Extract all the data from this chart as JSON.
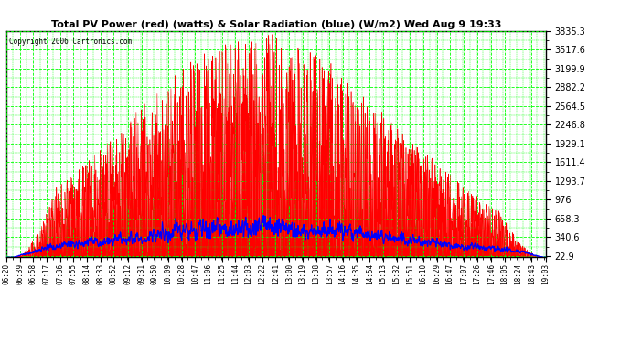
{
  "title": "Total PV Power (red) (watts) & Solar Radiation (blue) (W/m2) Wed Aug 9 19:33",
  "copyright": "Copyright 2006 Cartronics.com",
  "yticks": [
    22.9,
    340.6,
    658.3,
    976.0,
    1293.7,
    1611.4,
    1929.1,
    2246.8,
    2564.5,
    2882.2,
    3199.9,
    3517.6,
    3835.3
  ],
  "ylim": [
    0,
    3835.3
  ],
  "bg_color": "#ffffff",
  "grid_color": "#00ff00",
  "red_color": "#ff0000",
  "blue_color": "#0000ff",
  "time_labels": [
    "06:20",
    "06:39",
    "06:58",
    "07:17",
    "07:36",
    "07:55",
    "08:14",
    "08:33",
    "08:52",
    "09:12",
    "09:31",
    "09:50",
    "10:09",
    "10:28",
    "10:47",
    "11:06",
    "11:25",
    "11:44",
    "12:03",
    "12:22",
    "12:41",
    "13:00",
    "13:19",
    "13:38",
    "13:57",
    "14:16",
    "14:35",
    "14:54",
    "15:13",
    "15:32",
    "15:51",
    "16:10",
    "16:29",
    "16:47",
    "17:07",
    "17:26",
    "17:46",
    "18:05",
    "18:24",
    "18:43",
    "19:03"
  ]
}
